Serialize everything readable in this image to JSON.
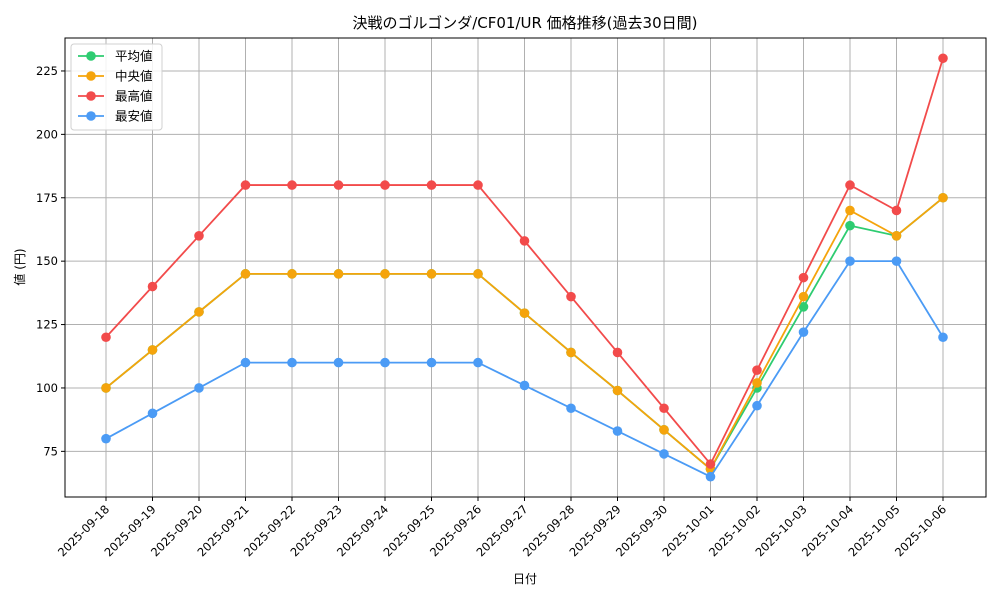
{
  "chart_data": {
    "type": "line",
    "title": "決戦のゴルゴンダ/CF01/UR 価格推移(過去30日間)",
    "xlabel": "日付",
    "ylabel": "値 (円)",
    "ylim": [
      57,
      238
    ],
    "yticks": [
      75,
      100,
      125,
      150,
      175,
      200,
      225
    ],
    "grid": true,
    "legend_position": "upper left",
    "categories": [
      "2025-09-18",
      "2025-09-19",
      "2025-09-20",
      "2025-09-21",
      "2025-09-22",
      "2025-09-23",
      "2025-09-24",
      "2025-09-25",
      "2025-09-26",
      "2025-09-27",
      "2025-09-28",
      "2025-09-29",
      "2025-09-30",
      "2025-10-01",
      "2025-10-02",
      "2025-10-03",
      "2025-10-04",
      "2025-10-05",
      "2025-10-06"
    ],
    "series": [
      {
        "name": "平均値",
        "color": "#2ecc71",
        "values": [
          100,
          115,
          130,
          145,
          145,
          145,
          145,
          145,
          145,
          129.5,
          114,
          99,
          83.5,
          68,
          100,
          132,
          164,
          160,
          175
        ]
      },
      {
        "name": "中央値",
        "color": "#f5a40c",
        "values": [
          100,
          115,
          130,
          145,
          145,
          145,
          145,
          145,
          145,
          129.5,
          114,
          99,
          83.5,
          68,
          102,
          136,
          170,
          160,
          175
        ]
      },
      {
        "name": "最高値",
        "color": "#f24b4b",
        "values": [
          120,
          140,
          160,
          180,
          180,
          180,
          180,
          180,
          180,
          158,
          136,
          114,
          92,
          70,
          107,
          143.5,
          180,
          170,
          230
        ]
      },
      {
        "name": "最安値",
        "color": "#4b9bf5",
        "values": [
          80,
          90,
          100,
          110,
          110,
          110,
          110,
          110,
          110,
          101,
          92,
          83,
          74,
          65,
          93,
          122,
          150,
          150,
          120
        ]
      }
    ]
  }
}
